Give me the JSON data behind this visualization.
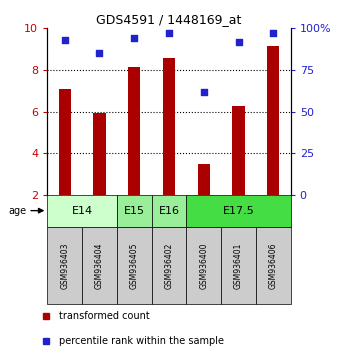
{
  "title": "GDS4591 / 1448169_at",
  "samples": [
    "GSM936403",
    "GSM936404",
    "GSM936405",
    "GSM936402",
    "GSM936400",
    "GSM936401",
    "GSM936406"
  ],
  "bar_values": [
    7.1,
    5.95,
    8.15,
    8.55,
    3.5,
    6.25,
    9.15
  ],
  "percentile_values": [
    93,
    85,
    94,
    97,
    62,
    92,
    97
  ],
  "bar_color": "#aa0000",
  "percentile_color": "#2222cc",
  "bar_bottom": 2.0,
  "ylim_left": [
    2,
    10
  ],
  "ylim_right": [
    0,
    100
  ],
  "yticks_left": [
    2,
    4,
    6,
    8,
    10
  ],
  "yticks_right": [
    0,
    25,
    50,
    75,
    100
  ],
  "ytick_labels_left": [
    "2",
    "4",
    "6",
    "8",
    "10"
  ],
  "ytick_labels_right": [
    "0",
    "25",
    "50",
    "75",
    "100%"
  ],
  "grid_values": [
    4,
    6,
    8
  ],
  "age_groups": [
    {
      "label": "E14",
      "start": 0,
      "end": 1,
      "color": "#ccffcc"
    },
    {
      "label": "E15",
      "start": 2,
      "end": 2,
      "color": "#99ee99"
    },
    {
      "label": "E16",
      "start": 3,
      "end": 3,
      "color": "#99ee99"
    },
    {
      "label": "E17.5",
      "start": 4,
      "end": 6,
      "color": "#44dd44"
    }
  ],
  "age_label": "age",
  "legend_items": [
    {
      "color": "#aa0000",
      "label": "transformed count"
    },
    {
      "color": "#2222cc",
      "label": "percentile rank within the sample"
    }
  ],
  "left_tick_color": "#cc0000",
  "right_tick_color": "#2222cc",
  "sample_box_color": "#cccccc",
  "bar_width": 0.35
}
